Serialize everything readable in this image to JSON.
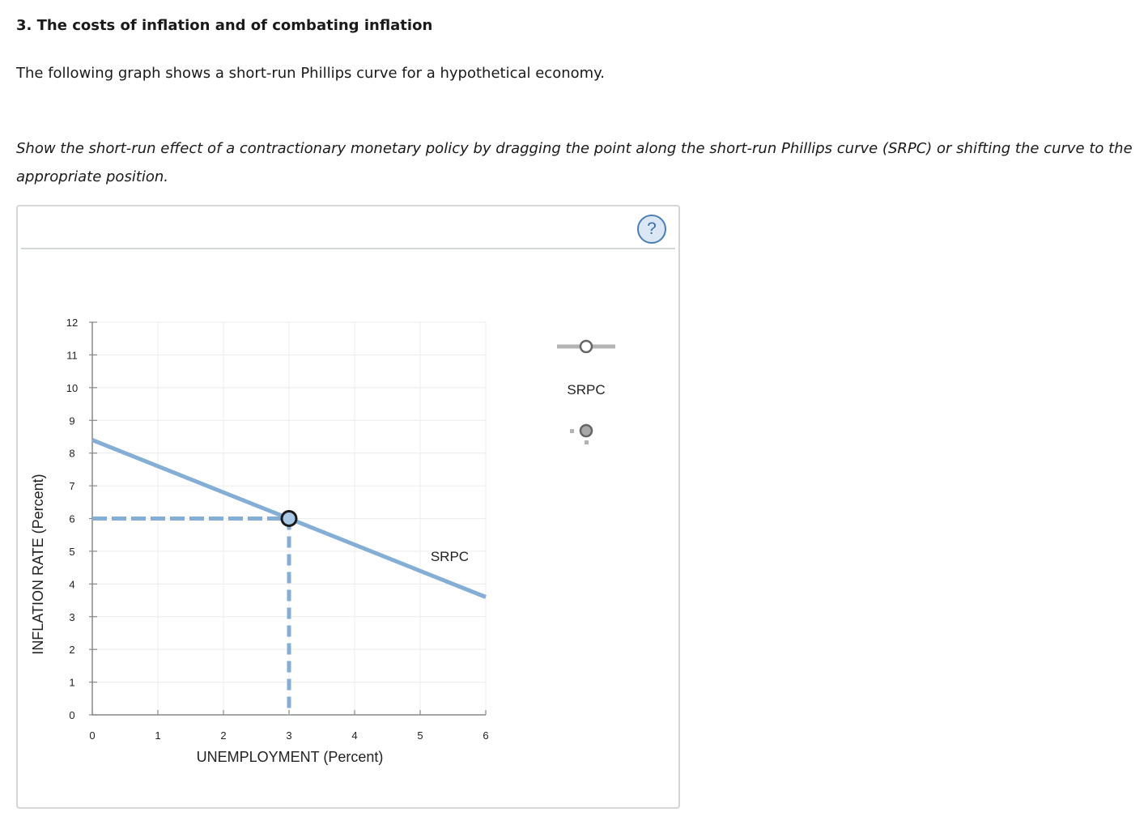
{
  "question": {
    "title": "3. The costs of inflation and of combating inflation",
    "intro": "The following graph shows a short-run Phillips curve for a hypothetical economy.",
    "instructions": "Show the short-run effect of a contractionary monetary policy by dragging the point along the short-run Phillips curve (SRPC) or shifting the curve to the appropriate position."
  },
  "panel": {
    "help_icon": "help-question-icon",
    "help_label": "?"
  },
  "palette": {
    "tool_label": "SRPC",
    "line_tool_icon": "line-with-point-icon",
    "point_tool_icon": "drag-point-icon"
  },
  "colors": {
    "curve": "#84aed6",
    "guide": "#84aed6",
    "point_stroke": "#1a1a1a",
    "point_fill": "#a9c8e6",
    "grid": "#ececec",
    "axis": "#888888",
    "palette_gray": "#b3b3b3"
  },
  "chart_data": {
    "type": "line",
    "xlabel": "UNEMPLOYMENT (Percent)",
    "ylabel": "INFLATION RATE (Percent)",
    "xlim": [
      0,
      6
    ],
    "ylim": [
      0,
      12
    ],
    "x_ticks": [
      "0",
      "1",
      "2",
      "3",
      "4",
      "5",
      "6"
    ],
    "y_ticks": [
      "0",
      "1",
      "2",
      "3",
      "4",
      "5",
      "6",
      "7",
      "8",
      "9",
      "10",
      "11",
      "12"
    ],
    "grid": true,
    "series": [
      {
        "name": "SRPC",
        "points": [
          [
            0,
            8.4
          ],
          [
            6,
            3.6
          ]
        ],
        "label_at": [
          5.45,
          4.7
        ]
      }
    ],
    "highlight_point": {
      "x": 3,
      "y": 6
    },
    "guide_lines": {
      "to_x_axis": true,
      "to_y_axis": true
    }
  }
}
